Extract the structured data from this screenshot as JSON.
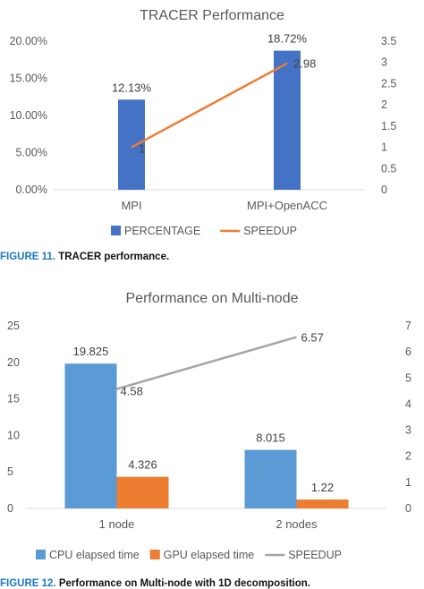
{
  "figures": [
    {
      "caption": {
        "number": "FIGURE 11.",
        "text": "TRACER performance."
      }
    },
    {
      "caption": {
        "number": "FIGURE 12.",
        "text": "Performance on Multi-node with 1D decomposition."
      }
    }
  ],
  "chart_data": [
    {
      "type": "bar",
      "title": "TRACER Performance",
      "categories": [
        "MPI",
        "MPI+OpenACC"
      ],
      "series": [
        {
          "name": "PERCENTAGE",
          "type": "bar",
          "axis": "left",
          "color": "#4472c4",
          "values": [
            12.13,
            18.72
          ],
          "labels": [
            "12.13%",
            "18.72%"
          ]
        },
        {
          "name": "SPEEDUP",
          "type": "line",
          "axis": "right",
          "color": "#ed7d31",
          "values": [
            1,
            2.98
          ],
          "labels": [
            "1",
            "2.98"
          ]
        }
      ],
      "y_left": {
        "min": 0,
        "max": 20,
        "ticks": [
          0,
          5,
          10,
          15,
          20
        ],
        "tick_labels": [
          "0.00%",
          "5.00%",
          "10.00%",
          "15.00%",
          "20.00%"
        ]
      },
      "y_right": {
        "min": 0,
        "max": 3.5,
        "ticks": [
          0,
          0.5,
          1,
          1.5,
          2,
          2.5,
          3,
          3.5
        ],
        "tick_labels": [
          "0",
          "0.5",
          "1",
          "1.5",
          "2",
          "2.5",
          "3",
          "3.5"
        ]
      },
      "legend": "bottom",
      "grid": false
    },
    {
      "type": "bar",
      "title": "Performance on Multi-node",
      "categories": [
        "1 node",
        "2 nodes"
      ],
      "series": [
        {
          "name": "CPU elapsed time",
          "type": "bar",
          "axis": "left",
          "color": "#5b9bd5",
          "values": [
            19.825,
            8.015
          ],
          "labels": [
            "19.825",
            "8.015"
          ]
        },
        {
          "name": "GPU elapsed time",
          "type": "bar",
          "axis": "left",
          "color": "#ed7d31",
          "values": [
            4.326,
            1.22
          ],
          "labels": [
            "4.326",
            "1.22"
          ]
        },
        {
          "name": "SPEEDUP",
          "type": "line",
          "axis": "right",
          "color": "#a5a5a5",
          "values": [
            4.58,
            6.57
          ],
          "labels": [
            "4.58",
            "6.57"
          ]
        }
      ],
      "y_left": {
        "min": 0,
        "max": 25,
        "ticks": [
          0,
          5,
          10,
          15,
          20,
          25
        ],
        "tick_labels": [
          "0",
          "5",
          "10",
          "15",
          "20",
          "25"
        ]
      },
      "y_right": {
        "min": 0,
        "max": 7,
        "ticks": [
          0,
          1,
          2,
          3,
          4,
          5,
          6,
          7
        ],
        "tick_labels": [
          "0",
          "1",
          "2",
          "3",
          "4",
          "5",
          "6",
          "7"
        ]
      },
      "legend": "bottom",
      "grid": false
    }
  ]
}
